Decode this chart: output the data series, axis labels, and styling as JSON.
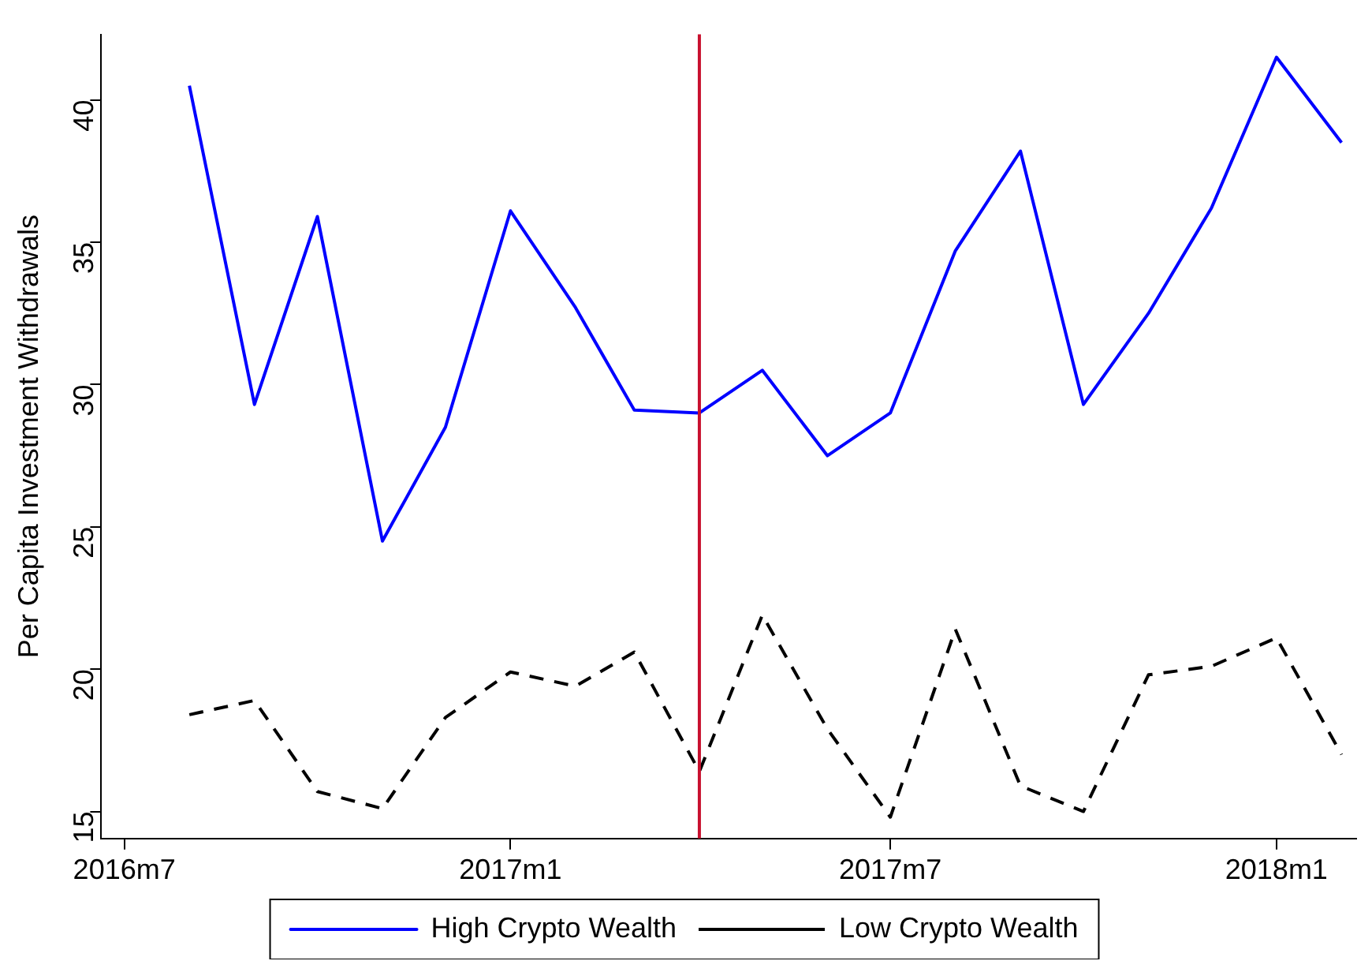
{
  "chart_data": {
    "type": "line",
    "ylabel": "Per Capita Investment Withdrawals",
    "x": [
      "2016-08",
      "2016-09",
      "2016-10",
      "2016-11",
      "2016-12",
      "2017-01",
      "2017-02",
      "2017-03",
      "2017-04",
      "2017-05",
      "2017-06",
      "2017-07",
      "2017-08",
      "2017-09",
      "2017-10",
      "2017-11",
      "2017-12",
      "2018-01",
      "2018-02"
    ],
    "series": [
      {
        "name": "High Crypto Wealth",
        "color": "#0000ff",
        "line_style": "solid",
        "values": [
          40.5,
          29.3,
          35.9,
          24.5,
          28.5,
          36.1,
          32.7,
          29.1,
          29.0,
          30.5,
          27.5,
          29.0,
          34.7,
          38.2,
          29.3,
          32.5,
          36.2,
          41.5,
          38.5
        ]
      },
      {
        "name": "Low Crypto Wealth",
        "color": "#000000",
        "line_style": "dashed",
        "values": [
          18.4,
          18.9,
          15.7,
          15.1,
          18.3,
          19.9,
          19.4,
          20.6,
          16.4,
          21.9,
          17.9,
          14.8,
          21.4,
          15.9,
          15.0,
          19.8,
          20.1,
          21.1,
          17.0
        ]
      }
    ],
    "xlim": [
      "2016-06-20",
      "2018-02-08"
    ],
    "xticks": [
      {
        "value": "2016-07",
        "label": "2016m7"
      },
      {
        "value": "2017-01",
        "label": "2017m1"
      },
      {
        "value": "2017-07",
        "label": "2017m7"
      },
      {
        "value": "2018-01",
        "label": "2018m1"
      }
    ],
    "ylim": [
      14.05,
      42.3
    ],
    "yticks": [
      15,
      20,
      25,
      30,
      35,
      40
    ],
    "ref_lines": [
      {
        "axis": "x",
        "value": "2017-04",
        "color": "#c8102e"
      }
    ],
    "grid": false,
    "legend": "bottom",
    "marker": "none"
  }
}
